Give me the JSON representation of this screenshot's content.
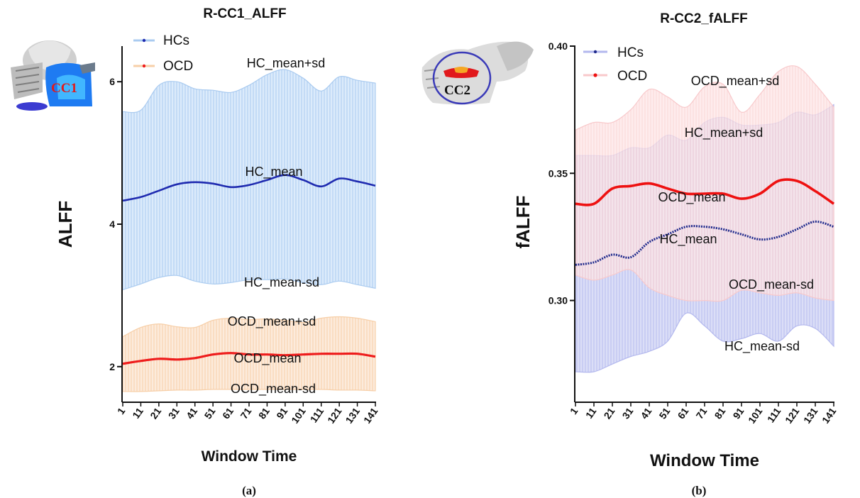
{
  "chart_data": [
    {
      "type": "area",
      "panel_label": "(a)",
      "title": "R-CC1_ALFF",
      "xlabel": "Window Time",
      "ylabel": "ALFF",
      "ylim": [
        1.5,
        6.5
      ],
      "yticks": [
        "2",
        "4",
        "6"
      ],
      "x_ticks": [
        "1",
        "11",
        "21",
        "31",
        "41",
        "51",
        "61",
        "71",
        "81",
        "91",
        "101",
        "111",
        "121",
        "131",
        "141"
      ],
      "legend": [
        "HCs",
        "OCD"
      ],
      "brain_label": "CC1",
      "colors": {
        "hc_band": "#aacbf0",
        "hc_line": "#1f2bb0",
        "ocd_band": "#f7cfa8",
        "ocd_line": "#ee1c1c"
      },
      "series": [
        {
          "name": "HC_mean+sd",
          "x": [
            1,
            11,
            21,
            31,
            41,
            51,
            61,
            71,
            81,
            91,
            101,
            111,
            121,
            131,
            141
          ],
          "values": [
            5.58,
            5.6,
            5.95,
            6.0,
            5.9,
            5.88,
            5.85,
            5.95,
            6.1,
            6.17,
            6.05,
            5.87,
            6.07,
            6.02,
            5.98
          ]
        },
        {
          "name": "HC_mean",
          "x": [
            1,
            11,
            21,
            31,
            41,
            51,
            61,
            71,
            81,
            91,
            101,
            111,
            121,
            131,
            141
          ],
          "values": [
            4.33,
            4.38,
            4.47,
            4.56,
            4.59,
            4.57,
            4.52,
            4.55,
            4.62,
            4.69,
            4.62,
            4.53,
            4.64,
            4.6,
            4.54
          ]
        },
        {
          "name": "HC_mean-sd",
          "x": [
            1,
            11,
            21,
            31,
            41,
            51,
            61,
            71,
            81,
            91,
            101,
            111,
            121,
            131,
            141
          ],
          "values": [
            3.08,
            3.16,
            3.25,
            3.28,
            3.2,
            3.16,
            3.18,
            3.22,
            3.22,
            3.23,
            3.18,
            3.15,
            3.2,
            3.15,
            3.1
          ]
        },
        {
          "name": "OCD_mean+sd",
          "x": [
            1,
            11,
            21,
            31,
            41,
            51,
            61,
            71,
            81,
            91,
            101,
            111,
            121,
            131,
            141
          ],
          "values": [
            2.42,
            2.55,
            2.6,
            2.56,
            2.55,
            2.65,
            2.68,
            2.66,
            2.67,
            2.65,
            2.62,
            2.68,
            2.7,
            2.68,
            2.63
          ]
        },
        {
          "name": "OCD_mean",
          "x": [
            1,
            11,
            21,
            31,
            41,
            51,
            61,
            71,
            81,
            91,
            101,
            111,
            121,
            131,
            141
          ],
          "values": [
            2.04,
            2.08,
            2.11,
            2.1,
            2.12,
            2.17,
            2.19,
            2.17,
            2.17,
            2.16,
            2.17,
            2.18,
            2.18,
            2.18,
            2.14
          ]
        },
        {
          "name": "OCD_mean-sd",
          "x": [
            1,
            11,
            21,
            31,
            41,
            51,
            61,
            71,
            81,
            91,
            101,
            111,
            121,
            131,
            141
          ],
          "values": [
            1.65,
            1.65,
            1.66,
            1.67,
            1.67,
            1.68,
            1.68,
            1.68,
            1.68,
            1.68,
            1.68,
            1.68,
            1.67,
            1.67,
            1.66
          ]
        }
      ],
      "annotations": [
        "HC_mean+sd",
        "HC_mean",
        "HC_mean-sd",
        "OCD_mean+sd",
        "OCD_mean",
        "OCD_mean-sd"
      ]
    },
    {
      "type": "area",
      "panel_label": "(b)",
      "title": "R-CC2_fALFF",
      "xlabel": "Window Time",
      "ylabel": "fALFF",
      "ylim": [
        0.26,
        0.4
      ],
      "yticks": [
        "0.30",
        "0.35",
        "0.40"
      ],
      "x_ticks": [
        "1",
        "11",
        "21",
        "31",
        "41",
        "51",
        "61",
        "71",
        "81",
        "91",
        "101",
        "111",
        "121",
        "131",
        "141"
      ],
      "legend": [
        "HCs",
        "OCD"
      ],
      "brain_label": "CC2",
      "colors": {
        "hc_band": "#b3b8ee",
        "hc_line": "#1f2a8c",
        "ocd_band": "#f8c9cb",
        "ocd_line": "#ee1111"
      },
      "series": [
        {
          "name": "OCD_mean+sd",
          "x": [
            1,
            11,
            21,
            31,
            41,
            51,
            61,
            71,
            81,
            91,
            101,
            111,
            121,
            131,
            141
          ],
          "values": [
            0.367,
            0.37,
            0.37,
            0.375,
            0.383,
            0.38,
            0.376,
            0.384,
            0.385,
            0.374,
            0.381,
            0.39,
            0.392,
            0.385,
            0.376
          ]
        },
        {
          "name": "OCD_mean",
          "x": [
            1,
            11,
            21,
            31,
            41,
            51,
            61,
            71,
            81,
            91,
            101,
            111,
            121,
            131,
            141
          ],
          "values": [
            0.338,
            0.338,
            0.344,
            0.345,
            0.346,
            0.344,
            0.342,
            0.342,
            0.342,
            0.34,
            0.342,
            0.347,
            0.347,
            0.343,
            0.338
          ]
        },
        {
          "name": "OCD_mean-sd",
          "x": [
            1,
            11,
            21,
            31,
            41,
            51,
            61,
            71,
            81,
            91,
            101,
            111,
            121,
            131,
            141
          ],
          "values": [
            0.31,
            0.308,
            0.31,
            0.312,
            0.305,
            0.302,
            0.3,
            0.3,
            0.3,
            0.304,
            0.303,
            0.302,
            0.303,
            0.301,
            0.3
          ]
        },
        {
          "name": "HC_mean+sd",
          "x": [
            1,
            11,
            21,
            31,
            41,
            51,
            61,
            71,
            81,
            91,
            101,
            111,
            121,
            131,
            141
          ],
          "values": [
            0.357,
            0.357,
            0.357,
            0.36,
            0.36,
            0.365,
            0.363,
            0.37,
            0.372,
            0.369,
            0.369,
            0.37,
            0.374,
            0.373,
            0.377
          ]
        },
        {
          "name": "HC_mean",
          "x": [
            1,
            11,
            21,
            31,
            41,
            51,
            61,
            71,
            81,
            91,
            101,
            111,
            121,
            131,
            141
          ],
          "values": [
            0.314,
            0.315,
            0.318,
            0.317,
            0.323,
            0.326,
            0.329,
            0.329,
            0.328,
            0.326,
            0.324,
            0.325,
            0.328,
            0.331,
            0.329
          ]
        },
        {
          "name": "HC_mean-sd",
          "x": [
            1,
            11,
            21,
            31,
            41,
            51,
            61,
            71,
            81,
            91,
            101,
            111,
            121,
            131,
            141
          ],
          "values": [
            0.272,
            0.272,
            0.275,
            0.278,
            0.28,
            0.284,
            0.295,
            0.29,
            0.284,
            0.285,
            0.287,
            0.284,
            0.29,
            0.289,
            0.282
          ]
        }
      ],
      "annotations": [
        "OCD_mean+sd",
        "HC_mean+sd",
        "OCD_mean",
        "HC_mean",
        "OCD_mean-sd",
        "HC_mean-sd"
      ]
    }
  ]
}
